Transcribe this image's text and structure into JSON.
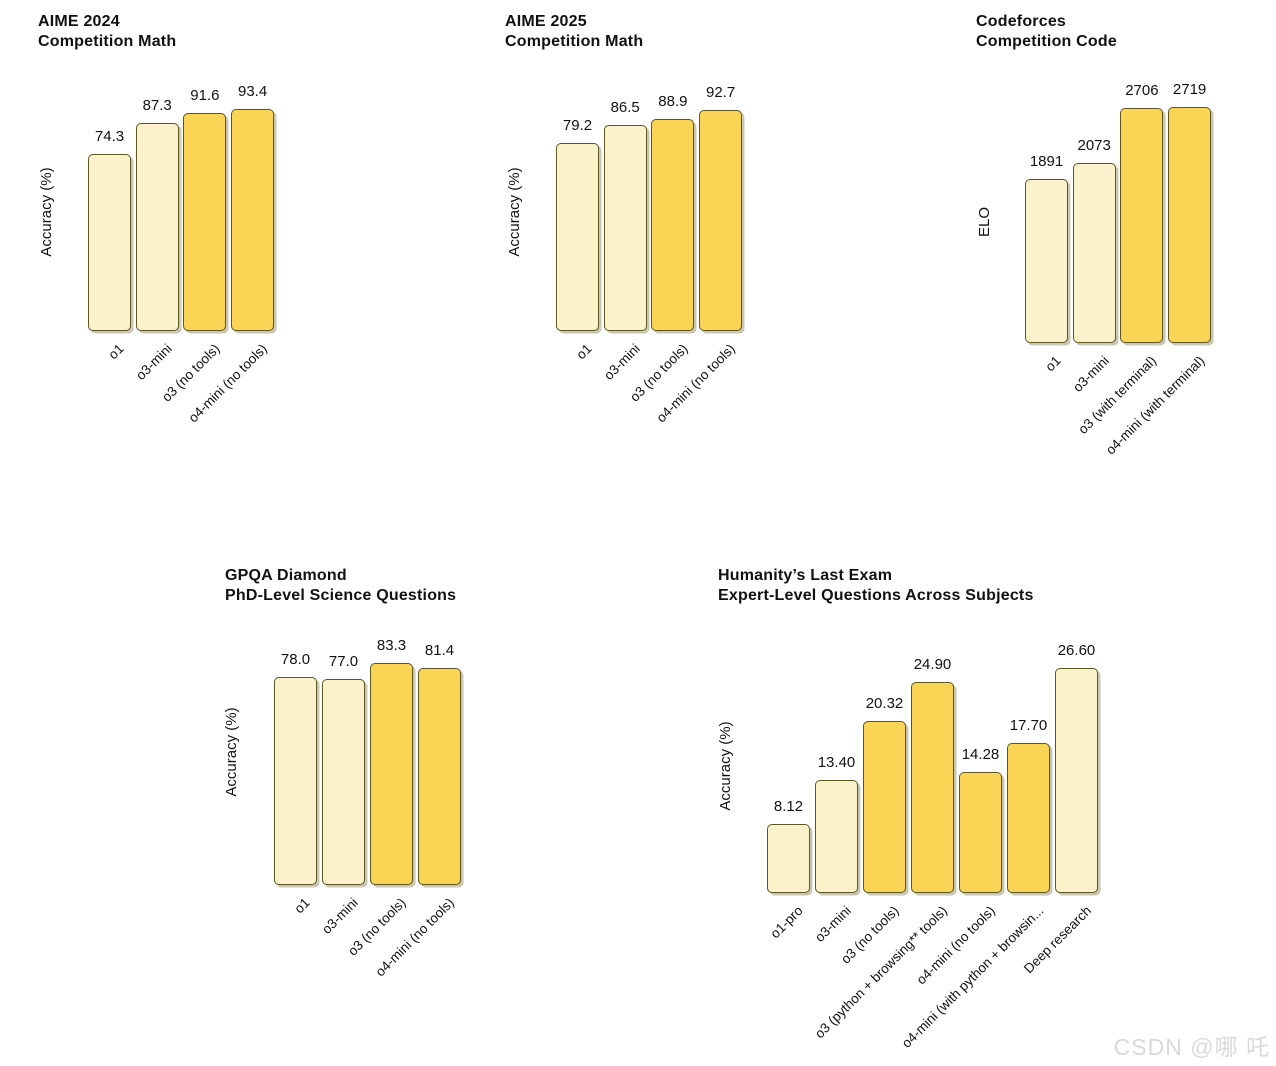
{
  "watermark": {
    "text": "CSDN @哪 吒"
  },
  "colors": {
    "background": "#ffffff",
    "text": "#111111",
    "light_bar": "#FBF2CB",
    "gold_bar": "#FAD555",
    "bar_border": "#5E5722"
  },
  "chart_data": [
    {
      "type": "bar",
      "title": "AIME 2024",
      "subtitle": "Competition Math",
      "ylabel": "Accuracy (%)",
      "xlabel": "",
      "categories": [
        "o1",
        "o3-mini",
        "o3 (no tools)",
        "o4-mini (no tools)"
      ],
      "values": [
        74.3,
        87.3,
        91.6,
        93.4
      ],
      "value_labels": [
        "74.3",
        "87.3",
        "91.6",
        "93.4"
      ],
      "ylim": [
        0,
        100
      ],
      "grid": false,
      "legend": "none",
      "bar_emphasis": [
        "light_bar",
        "light_bar",
        "gold_bar",
        "gold_bar"
      ]
    },
    {
      "type": "bar",
      "title": "AIME 2025",
      "subtitle": "Competition Math",
      "ylabel": "Accuracy (%)",
      "xlabel": "",
      "categories": [
        "o1",
        "o3-mini",
        "o3 (no tools)",
        "o4-mini (no tools)"
      ],
      "values": [
        79.2,
        86.5,
        88.9,
        92.7
      ],
      "value_labels": [
        "79.2",
        "86.5",
        "88.9",
        "92.7"
      ],
      "ylim": [
        0,
        100
      ],
      "grid": false,
      "legend": "none",
      "bar_emphasis": [
        "light_bar",
        "light_bar",
        "gold_bar",
        "gold_bar"
      ]
    },
    {
      "type": "bar",
      "title": "Codeforces",
      "subtitle": "Competition Code",
      "ylabel": "ELO",
      "xlabel": "",
      "categories": [
        "o1",
        "o3-mini",
        "o3 (with terminal)",
        "o4-mini (with terminal)"
      ],
      "values": [
        1891,
        2073,
        2706,
        2719
      ],
      "value_labels": [
        "1891",
        "2073",
        "2706",
        "2719"
      ],
      "ylim": [
        0,
        2800
      ],
      "grid": false,
      "legend": "none",
      "bar_emphasis": [
        "light_bar",
        "light_bar",
        "gold_bar",
        "gold_bar"
      ]
    },
    {
      "type": "bar",
      "title": "GPQA Diamond",
      "subtitle": "PhD-Level Science Questions",
      "ylabel": "Accuracy (%)",
      "xlabel": "",
      "categories": [
        "o1",
        "o3-mini",
        "o3 (no tools)",
        "o4-mini (no tools)"
      ],
      "values": [
        78.0,
        77.0,
        83.3,
        81.4
      ],
      "value_labels": [
        "78.0",
        "77.0",
        "83.3",
        "81.4"
      ],
      "ylim": [
        0,
        100
      ],
      "grid": false,
      "legend": "none",
      "bar_emphasis": [
        "light_bar",
        "light_bar",
        "gold_bar",
        "gold_bar"
      ]
    },
    {
      "type": "bar",
      "title": "Humanity’s Last Exam",
      "subtitle": "Expert-Level Questions Across Subjects",
      "ylabel": "Accuracy (%)",
      "xlabel": "",
      "categories": [
        "o1-pro",
        "o3-mini",
        "o3 (no tools)",
        "o3 (python + browsing** tools)",
        "o4-mini (no tools)",
        "o4-mini (with python + browsin...",
        "Deep research"
      ],
      "values": [
        8.12,
        13.4,
        20.32,
        24.9,
        14.28,
        17.7,
        26.6
      ],
      "value_labels": [
        "8.12",
        "13.40",
        "20.32",
        "24.90",
        "14.28",
        "17.70",
        "26.60"
      ],
      "ylim": [
        0,
        30
      ],
      "grid": false,
      "legend": "none",
      "bar_emphasis": [
        "light_bar",
        "light_bar",
        "gold_bar",
        "gold_bar",
        "gold_bar",
        "gold_bar",
        "light_bar"
      ]
    }
  ]
}
